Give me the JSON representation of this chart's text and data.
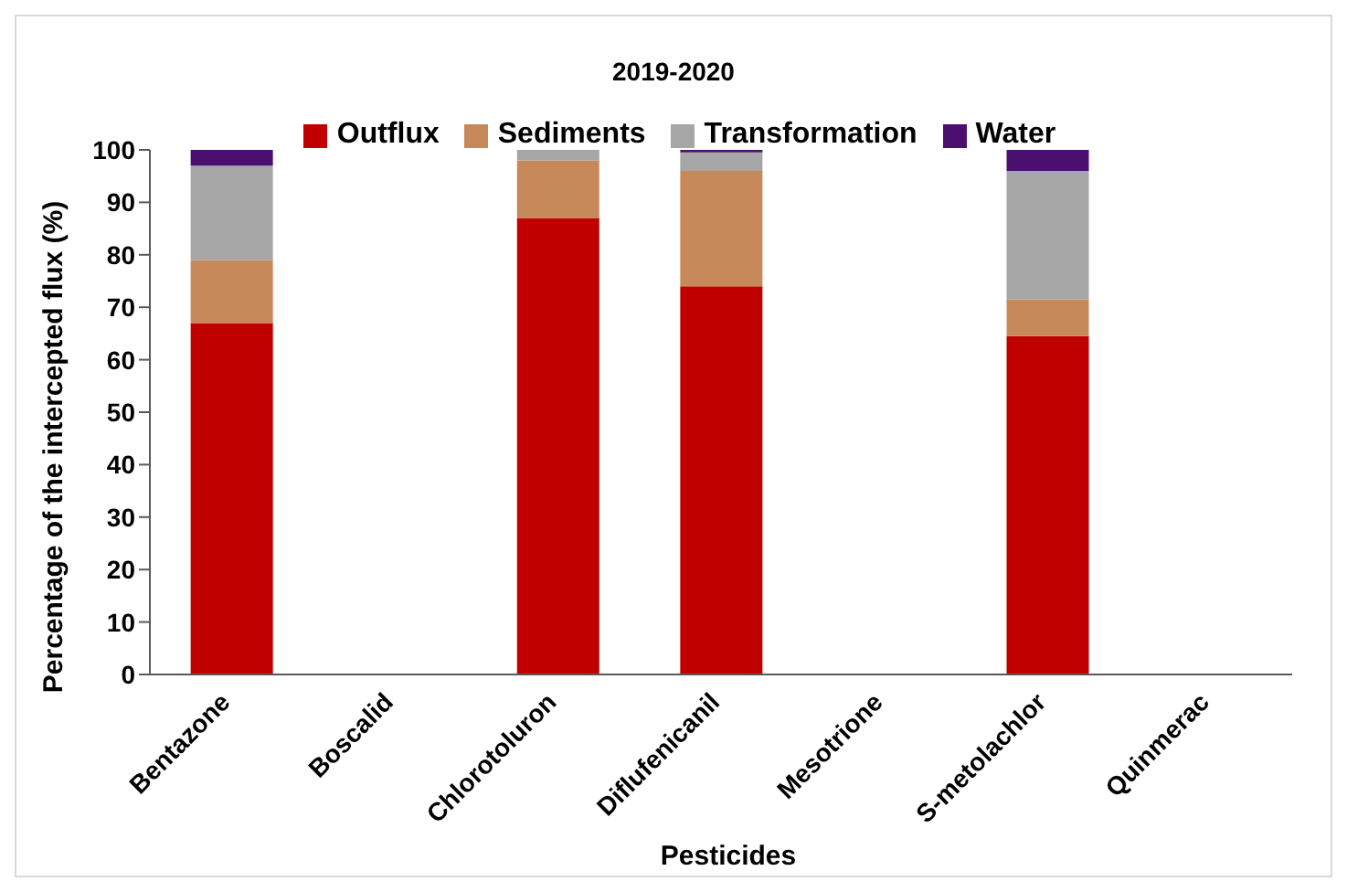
{
  "chart_data": {
    "type": "bar",
    "stacked": true,
    "title": "2019-2020",
    "xlabel": "Pesticides",
    "ylabel": "Percentage of the intercepted flux (%)",
    "categories": [
      "Bentazone",
      "Boscalid",
      "Chlorotoluron",
      "Diflufenicanil",
      "Mesotrione",
      "S-metolachlor",
      "Quinmerac"
    ],
    "series": [
      {
        "name": "Outflux",
        "color": "#c00000",
        "values": [
          67,
          null,
          87,
          74,
          null,
          64.5,
          null
        ]
      },
      {
        "name": "Sediments",
        "color": "#c8895a",
        "values": [
          12,
          null,
          11,
          22,
          null,
          7,
          null
        ]
      },
      {
        "name": "Transformation",
        "color": "#a6a6a6",
        "values": [
          18,
          null,
          2,
          3.5,
          null,
          24.5,
          null
        ]
      },
      {
        "name": "Water",
        "color": "#4b0f6f",
        "values": [
          3,
          null,
          null,
          0.5,
          null,
          4,
          null
        ]
      }
    ],
    "ylim": [
      0,
      100
    ],
    "yticks": [
      0,
      10,
      20,
      30,
      40,
      50,
      60,
      70,
      80,
      90,
      100
    ],
    "grid": false,
    "legend": "top"
  }
}
